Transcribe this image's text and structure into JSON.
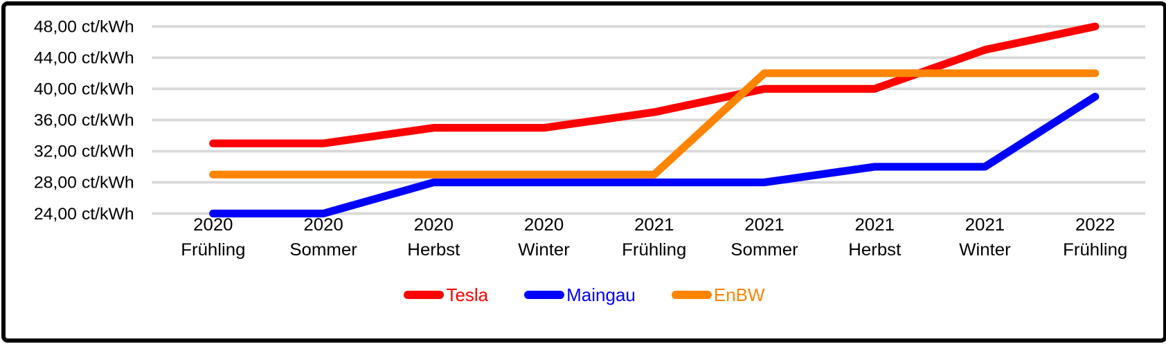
{
  "chart_data": {
    "type": "line",
    "title": "",
    "unit": "ct/kWh",
    "y_axis": {
      "min": 24,
      "max": 48,
      "step": 4,
      "ticks": [
        {
          "value": 48,
          "label": "48,00 ct/kWh"
        },
        {
          "value": 44,
          "label": "44,00 ct/kWh"
        },
        {
          "value": 40,
          "label": "40,00 ct/kWh"
        },
        {
          "value": 36,
          "label": "36,00 ct/kWh"
        },
        {
          "value": 32,
          "label": "32,00 ct/kWh"
        },
        {
          "value": 28,
          "label": "28,00 ct/kWh"
        },
        {
          "value": 24,
          "label": "24,00 ct/kWh"
        }
      ]
    },
    "categories": [
      {
        "year": "2020",
        "season": "Frühling"
      },
      {
        "year": "2020",
        "season": "Sommer"
      },
      {
        "year": "2020",
        "season": "Herbst"
      },
      {
        "year": "2020",
        "season": "Winter"
      },
      {
        "year": "2021",
        "season": "Frühling"
      },
      {
        "year": "2021",
        "season": "Sommer"
      },
      {
        "year": "2021",
        "season": "Herbst"
      },
      {
        "year": "2021",
        "season": "Winter"
      },
      {
        "year": "2022",
        "season": "Frühling"
      }
    ],
    "series": [
      {
        "name": "Tesla",
        "color": "#FF0000",
        "values": [
          33,
          33,
          35,
          35,
          37,
          40,
          40,
          45,
          48
        ]
      },
      {
        "name": "Maingau",
        "color": "#0000FF",
        "values": [
          24,
          24,
          28,
          28,
          28,
          28,
          30,
          30,
          39
        ]
      },
      {
        "name": "EnBW",
        "color": "#FF8400",
        "values": [
          29,
          29,
          29,
          29,
          29,
          42,
          42,
          42,
          42
        ]
      }
    ],
    "legend": {
      "position": "bottom-center",
      "entries": [
        "Tesla",
        "Maingau",
        "EnBW"
      ]
    },
    "gridlines": true,
    "colors": {
      "gridline": "#D9D9D9",
      "text": "#000000",
      "background": "#FFFFFF",
      "border": "#000000"
    }
  }
}
